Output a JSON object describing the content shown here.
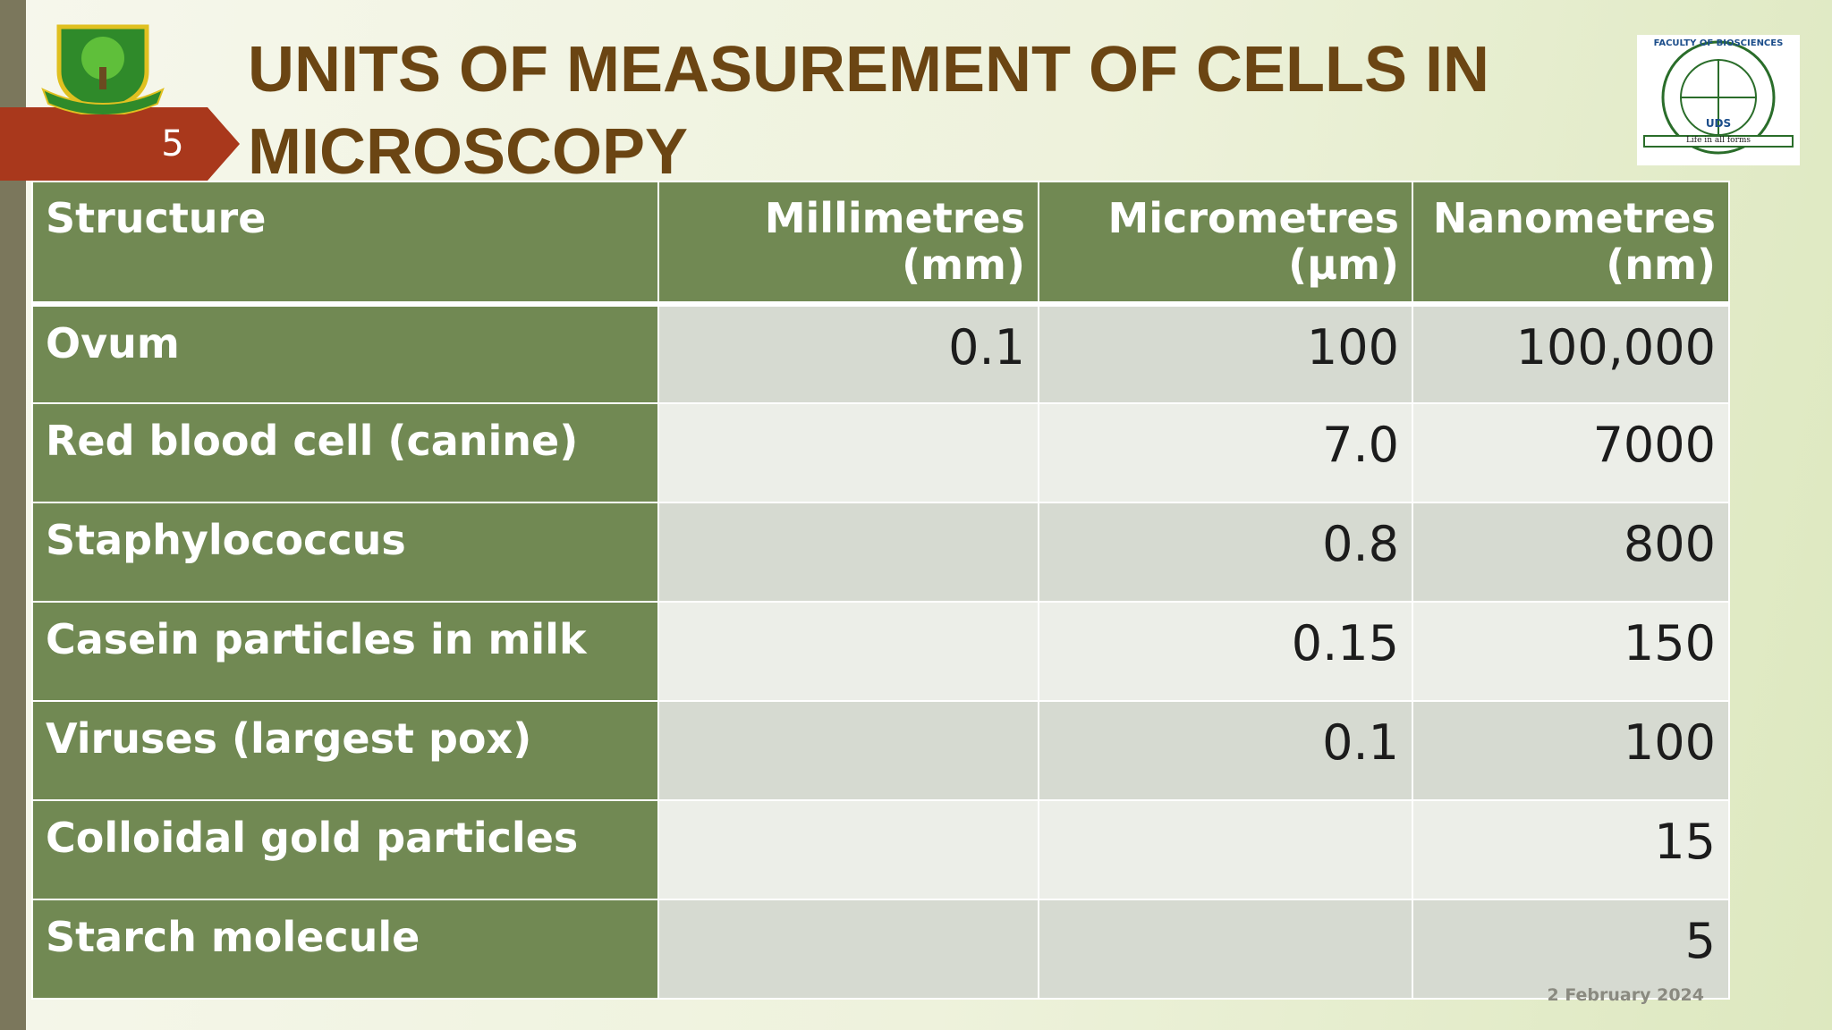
{
  "slide_number": "5",
  "title": "UNITS OF MEASUREMENT OF CELLS IN MICROSCOPY",
  "logo_right": {
    "ring_text": "FACULTY OF BIOSCIENCES",
    "name": "UDS",
    "motto": "Life in all forms"
  },
  "table": {
    "header": [
      "Structure",
      "Millimetres (mm)",
      "Micrometres (µm)",
      "Nanometres (nm)"
    ],
    "rows": [
      [
        "Ovum",
        "0.1",
        "100",
        "100,000"
      ],
      [
        "Red blood cell (canine)",
        null,
        "7.0",
        "7000"
      ],
      [
        "Staphylococcus",
        null,
        "0.8",
        "800"
      ],
      [
        "Casein particles in milk",
        null,
        "0.15",
        "150"
      ],
      [
        "Viruses (largest pox)",
        null,
        "0.1",
        "100"
      ],
      [
        "Colloidal gold particles",
        null,
        null,
        "15"
      ],
      [
        "Starch molecule",
        null,
        null,
        "5"
      ]
    ]
  },
  "date": "2 February 2024"
}
